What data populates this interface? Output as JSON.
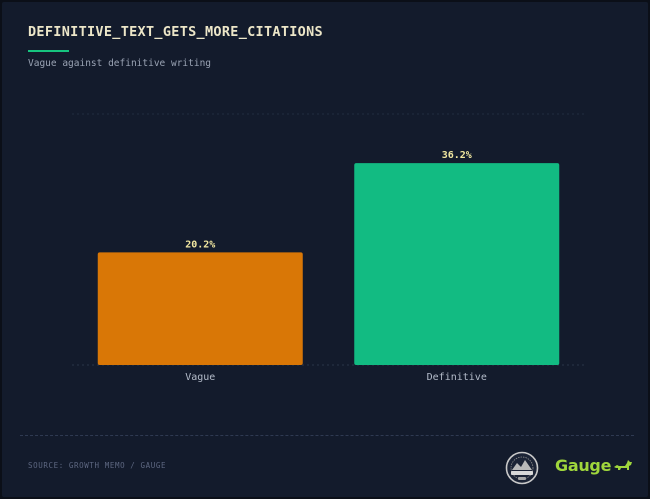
{
  "header": {
    "title": "DEFINITIVE_TEXT_GETS_MORE_CITATIONS",
    "subtitle": "Vague against definitive writing"
  },
  "footer": {
    "source": "SOURCE: GROWTH MEMO / GAUGE",
    "brand": "Gauge"
  },
  "colors": {
    "background": "#131b2c",
    "title": "#ece6c8",
    "accent": "#16c47f",
    "value_label": "#f1e7a0"
  },
  "icons": [
    "growth-memo-seal-icon",
    "gauge-dog-icon"
  ],
  "chart_data": {
    "type": "bar",
    "categories": [
      "Vague",
      "Definitive"
    ],
    "values": [
      20.2,
      36.2
    ],
    "value_labels": [
      "20.2%",
      "36.2%"
    ],
    "bar_colors": [
      "#d97706",
      "#12bb82"
    ],
    "ylim": [
      0,
      45
    ],
    "grid": false,
    "legend": "none"
  }
}
